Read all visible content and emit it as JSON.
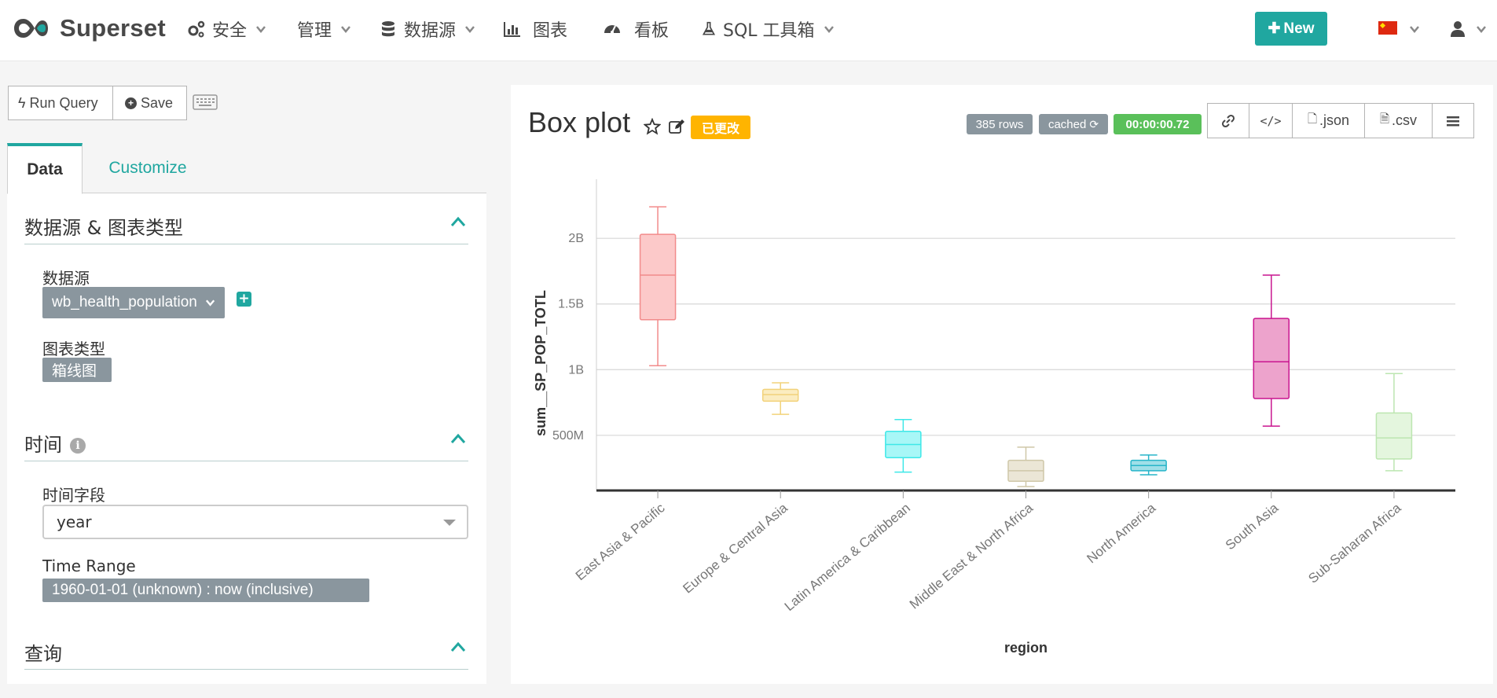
{
  "nav": {
    "brand": "Superset",
    "items": [
      {
        "label": "安全",
        "icon": "cogs-icon"
      },
      {
        "label": "管理",
        "icon": ""
      },
      {
        "label": "数据源",
        "icon": "database-icon"
      },
      {
        "label": "图表",
        "icon": "bar-chart-icon"
      },
      {
        "label": "看板",
        "icon": "dashboard-icon"
      },
      {
        "label": "SQL 工具箱",
        "icon": "flask-icon"
      }
    ],
    "new_button": "New",
    "language_flag": "china-flag-icon",
    "user_icon": "user-icon"
  },
  "toolbar": {
    "run_query": "Run Query",
    "save": "Save",
    "keyboard_icon": "keyboard-icon"
  },
  "tabs": {
    "data": "Data",
    "customize": "Customize"
  },
  "sections": {
    "datasource_chart_type": {
      "title": "数据源 & 图表类型",
      "datasource_label": "数据源",
      "datasource_value": "wb_health_population",
      "chart_type_label": "图表类型",
      "chart_type_value": "箱线图"
    },
    "time": {
      "title": "时间",
      "time_field_label": "时间字段",
      "time_field_value": "year",
      "time_range_label": "Time Range",
      "time_range_value": "1960-01-01 (unknown) : now (inclusive)"
    },
    "query": {
      "title": "查询"
    }
  },
  "chart_header": {
    "title": "Box plot",
    "changed_badge": "已更改",
    "rows": "385 rows",
    "cached": "cached",
    "duration": "00:00:00.72",
    "json_btn": ".json",
    "csv_btn": ".csv"
  },
  "colors": {
    "brand_teal": "#20a7a0",
    "changed": "#ffb400",
    "duration": "#5ac05a",
    "badge_gray": "#8a969e"
  },
  "chart_data": {
    "type": "box",
    "xlabel": "region",
    "ylabel": "sum__SP_POP_TOTL",
    "ylim": [
      80000000,
      2450000000
    ],
    "yticks": [
      {
        "value": 500000000,
        "label": "500M"
      },
      {
        "value": 1000000000,
        "label": "1B"
      },
      {
        "value": 1500000000,
        "label": "1.5B"
      },
      {
        "value": 2000000000,
        "label": "2B"
      }
    ],
    "grid": true,
    "series": [
      {
        "category": "East Asia & Pacific",
        "min": 1030000000,
        "q1": 1380000000,
        "median": 1720000000,
        "q3": 2030000000,
        "max": 2240000000,
        "color": "#f28b8b",
        "fill": "#fcc9c9"
      },
      {
        "category": "Europe & Central Asia",
        "min": 660000000,
        "q1": 760000000,
        "median": 810000000,
        "q3": 850000000,
        "max": 900000000,
        "color": "#f2d27a",
        "fill": "#fbecc0"
      },
      {
        "category": "Latin America & Caribbean",
        "min": 220000000,
        "q1": 330000000,
        "median": 430000000,
        "q3": 530000000,
        "max": 620000000,
        "color": "#3ee8e8",
        "fill": "#a8f7f7"
      },
      {
        "category": "Middle East & North Africa",
        "min": 110000000,
        "q1": 150000000,
        "median": 230000000,
        "q3": 310000000,
        "max": 410000000,
        "color": "#cfc7a8",
        "fill": "#ebe6d6"
      },
      {
        "category": "North America",
        "min": 200000000,
        "q1": 230000000,
        "median": 270000000,
        "q3": 310000000,
        "max": 350000000,
        "color": "#27b5c9",
        "fill": "#9fdfe8"
      },
      {
        "category": "South Asia",
        "min": 570000000,
        "q1": 780000000,
        "median": 1060000000,
        "q3": 1390000000,
        "max": 1720000000,
        "color": "#c9158f",
        "fill": "#eda3cc"
      },
      {
        "category": "Sub-Saharan Africa",
        "min": 230000000,
        "q1": 320000000,
        "median": 480000000,
        "q3": 670000000,
        "max": 970000000,
        "color": "#bce6b0",
        "fill": "#e4f6de"
      }
    ]
  }
}
